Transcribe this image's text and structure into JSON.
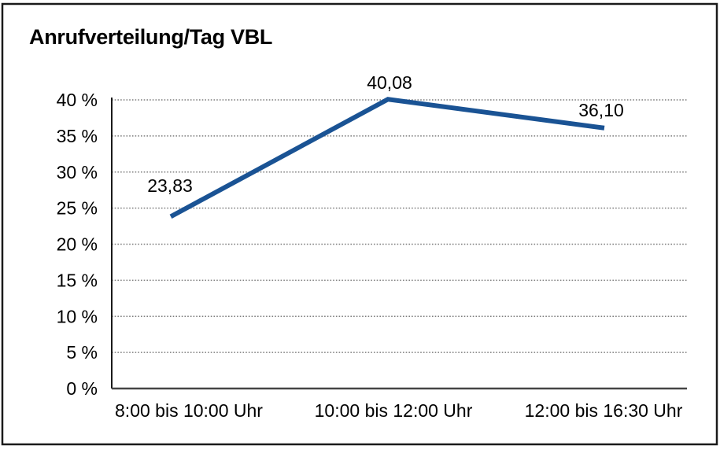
{
  "chart_data": {
    "type": "line",
    "title": "Anrufverteilung/Tag VBL",
    "categories": [
      "8:00 bis 10:00 Uhr",
      "10:00 bis 12:00 Uhr",
      "12:00 bis 16:30 Uhr"
    ],
    "series": [
      {
        "values": [
          23.83,
          40.08,
          36.1
        ],
        "point_labels": [
          "23,83",
          "40,08",
          "36,10"
        ]
      }
    ],
    "xlabel": "",
    "ylabel": "",
    "ylim": [
      0,
      40
    ],
    "y_tick_step": 5,
    "y_tick_labels": [
      "0 %",
      "5 %",
      "10 %",
      "15 %",
      "20 %",
      "25 %",
      "30 %",
      "35 %",
      "40 %"
    ],
    "grid": "horizontal-dotted",
    "legend": "none"
  },
  "colors": {
    "line": "#1A5394",
    "grid": "#7d7d7d",
    "y_axis": "#1a1a1a",
    "x_axis": "#454545",
    "frame_border": "#1a1a1a",
    "text": "#000000",
    "background": "#ffffff"
  }
}
